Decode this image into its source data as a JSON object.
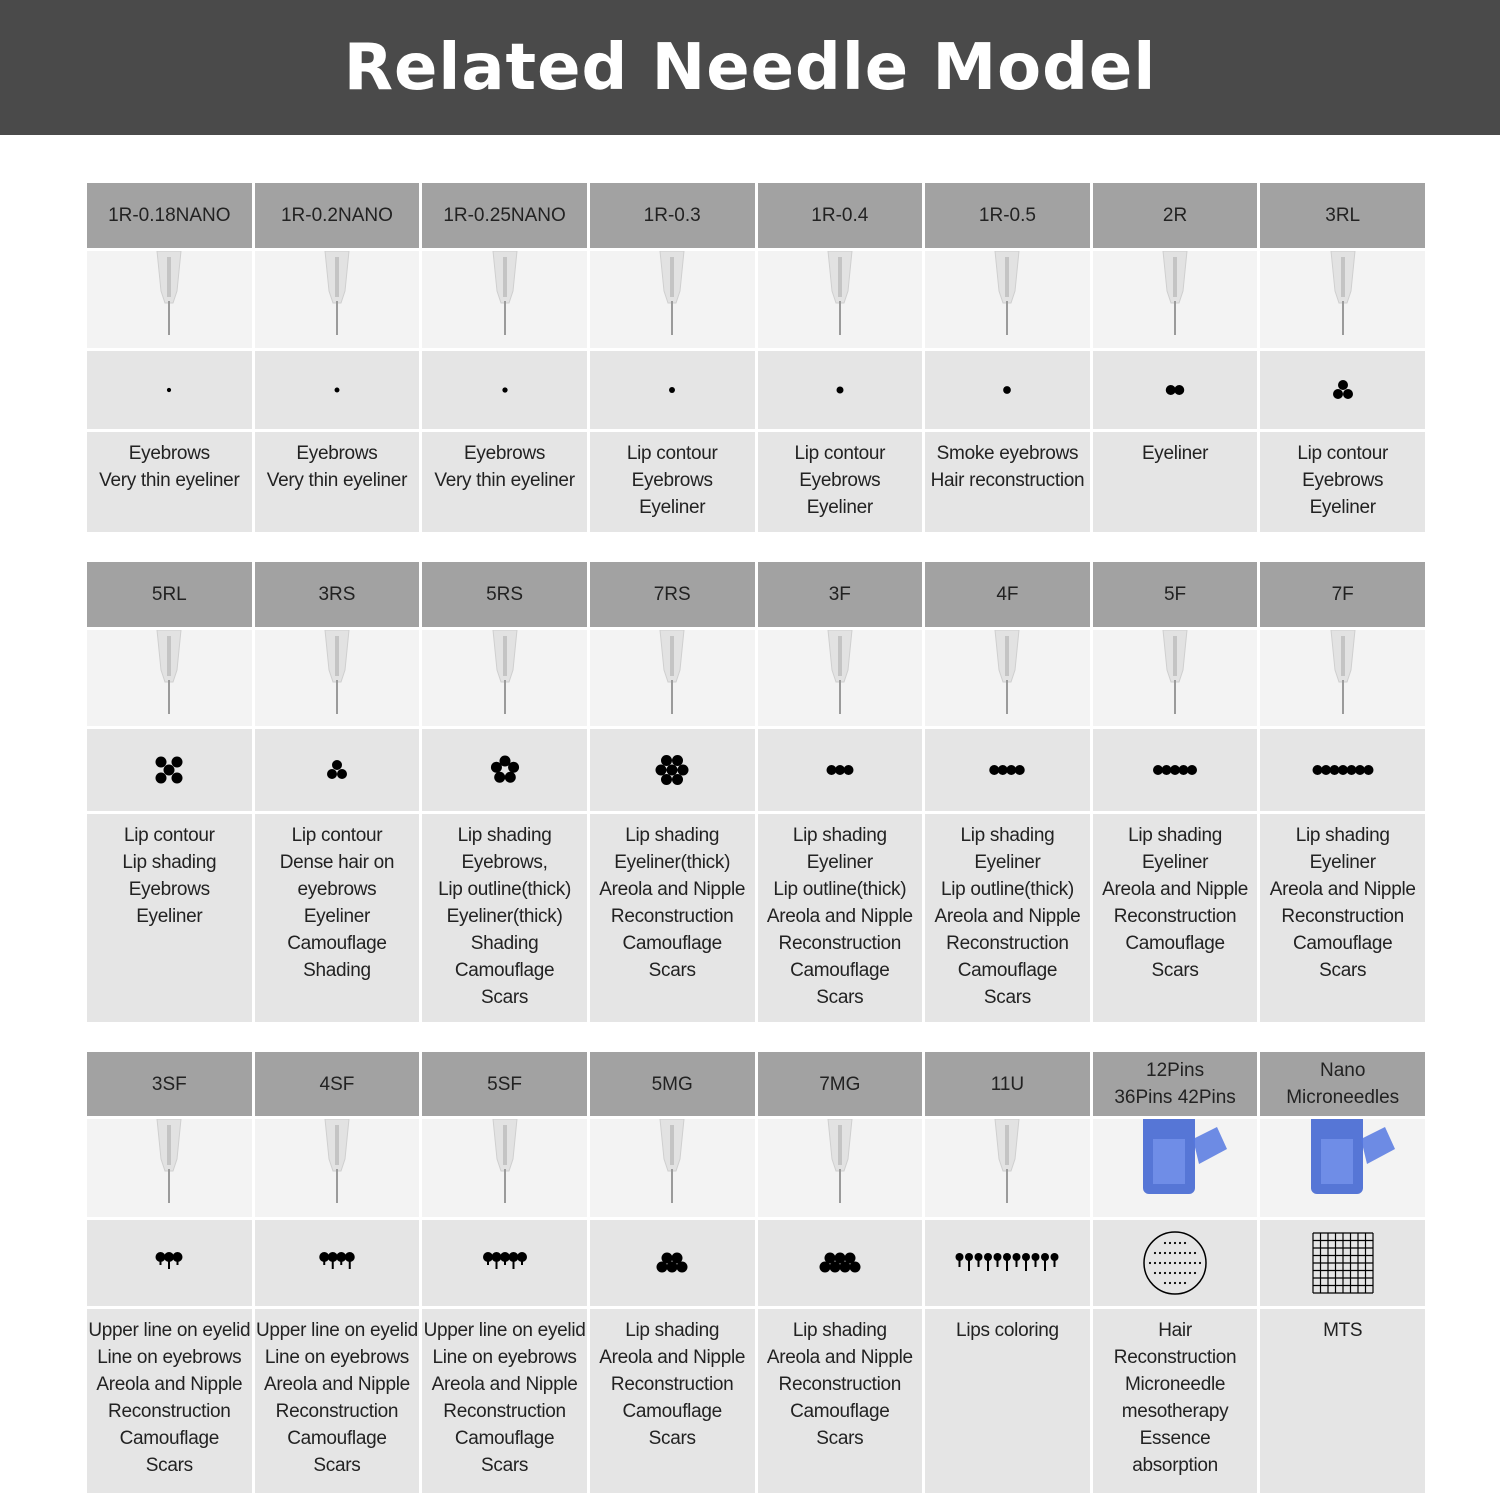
{
  "title": "Related Needle Model",
  "colors": {
    "banner": "#4a4a4a",
    "header_cell": "#a2a2a2",
    "image_cell": "#f3f3f3",
    "cell": "#e5e5e5",
    "cartridge": "#3a5fd0"
  },
  "sections": [
    {
      "items": [
        {
          "model": "1R-0.18NANO",
          "image": "needle",
          "pattern": {
            "type": "round",
            "count": 1,
            "scale": 0.6
          },
          "uses": "Eyebrows\nVery thin eyeliner"
        },
        {
          "model": "1R-0.2NANO",
          "image": "needle",
          "pattern": {
            "type": "round",
            "count": 1,
            "scale": 0.7
          },
          "uses": "Eyebrows\nVery thin eyeliner"
        },
        {
          "model": "1R-0.25NANO",
          "image": "needle",
          "pattern": {
            "type": "round",
            "count": 1,
            "scale": 0.75
          },
          "uses": "Eyebrows\nVery thin eyeliner"
        },
        {
          "model": "1R-0.3",
          "image": "needle",
          "pattern": {
            "type": "round",
            "count": 1,
            "scale": 0.85
          },
          "uses": "Lip contour\nEyebrows\nEyeliner"
        },
        {
          "model": "1R-0.4",
          "image": "needle",
          "pattern": {
            "type": "round",
            "count": 1,
            "scale": 1
          },
          "uses": "Lip contour\nEyebrows\nEyeliner"
        },
        {
          "model": "1R-0.5",
          "image": "needle",
          "pattern": {
            "type": "round",
            "count": 1,
            "scale": 1.1
          },
          "uses": "Smoke eyebrows\nHair reconstruction"
        },
        {
          "model": "2R",
          "image": "needle",
          "pattern": {
            "type": "flat",
            "count": 2
          },
          "uses": "Eyeliner"
        },
        {
          "model": "3RL",
          "image": "needle",
          "pattern": {
            "type": "cluster",
            "count": 3
          },
          "uses": "Lip contour\nEyebrows\nEyeliner"
        }
      ]
    },
    {
      "items": [
        {
          "model": "5RL",
          "image": "needle",
          "pattern": {
            "type": "cross",
            "count": 5
          },
          "uses": "Lip contour\nLip shading\nEyebrows\nEyeliner"
        },
        {
          "model": "3RS",
          "image": "needle",
          "pattern": {
            "type": "cluster",
            "count": 3
          },
          "uses": "Lip contour\nDense hair on\neyebrows\nEyeliner\nCamouflage\nShading"
        },
        {
          "model": "5RS",
          "image": "needle",
          "pattern": {
            "type": "flower",
            "count": 5
          },
          "uses": "Lip shading\nEyebrows,\nLip outline(thick)\nEyeliner(thick)\nShading\nCamouflage\nScars"
        },
        {
          "model": "7RS",
          "image": "needle",
          "pattern": {
            "type": "hex",
            "count": 7
          },
          "uses": "Lip shading\nEyeliner(thick)\nAreola and Nipple\nReconstruction\nCamouflage\nScars"
        },
        {
          "model": "3F",
          "image": "needle",
          "pattern": {
            "type": "flat",
            "count": 3
          },
          "uses": "Lip shading\nEyeliner\nLip outline(thick)\nAreola and Nipple\nReconstruction\nCamouflage\nScars"
        },
        {
          "model": "4F",
          "image": "needle",
          "pattern": {
            "type": "flat",
            "count": 4
          },
          "uses": "Lip shading\nEyeliner\nLip outline(thick)\nAreola and Nipple\nReconstruction\nCamouflage\nScars"
        },
        {
          "model": "5F",
          "image": "needle",
          "pattern": {
            "type": "flat",
            "count": 5
          },
          "uses": "Lip shading\nEyeliner\nAreola and Nipple\nReconstruction\nCamouflage\nScars"
        },
        {
          "model": "7F",
          "image": "needle",
          "pattern": {
            "type": "flat",
            "count": 7
          },
          "uses": "Lip shading\nEyeliner\nAreola and Nipple\nReconstruction\nCamouflage\nScars"
        }
      ]
    },
    {
      "items": [
        {
          "model": "3SF",
          "image": "needle",
          "pattern": {
            "type": "stem",
            "count": 3
          },
          "uses": "Upper line on eyelid\nLine on eyebrows\nAreola and Nipple\nReconstruction\nCamouflage\nScars"
        },
        {
          "model": "4SF",
          "image": "needle",
          "pattern": {
            "type": "stem",
            "count": 4
          },
          "uses": "Upper line on eyelid\nLine on eyebrows\nAreola and Nipple\nReconstruction\nCamouflage\nScars"
        },
        {
          "model": "5SF",
          "image": "needle",
          "pattern": {
            "type": "stem",
            "count": 5
          },
          "uses": "Upper line on eyelid\nLine on eyebrows\nAreola and Nipple\nReconstruction\nCamouflage\nScars"
        },
        {
          "model": "5MG",
          "image": "needle",
          "pattern": {
            "type": "magnum",
            "count": 5
          },
          "uses": "Lip shading\nAreola and Nipple\nReconstruction\nCamouflage\nScars"
        },
        {
          "model": "7MG",
          "image": "needle",
          "pattern": {
            "type": "magnum",
            "count": 7
          },
          "uses": "Lip shading\nAreola and Nipple\nReconstruction\nCamouflage\nScars"
        },
        {
          "model": "11U",
          "image": "needle",
          "pattern": {
            "type": "stem",
            "count": 11
          },
          "uses": "Lips coloring"
        },
        {
          "model": "12Pins\n36Pins 42Pins",
          "image": "cartridge",
          "pattern": {
            "type": "circle-array"
          },
          "uses": "Hair\nReconstruction\nMicroneedle\nmesotherapy\nEssence\nabsorption"
        },
        {
          "model": "Nano\nMicroneedles",
          "image": "cartridge",
          "pattern": {
            "type": "grid"
          },
          "uses": "MTS"
        }
      ]
    }
  ]
}
